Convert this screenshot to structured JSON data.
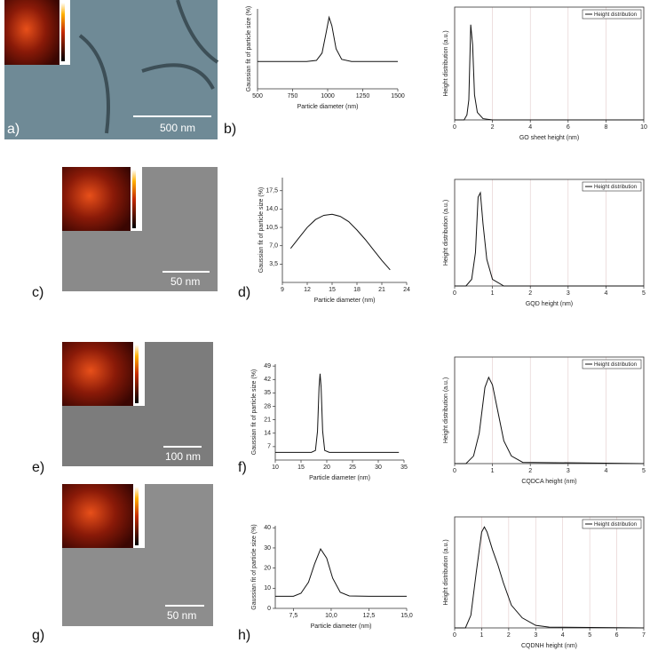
{
  "panel_labels": [
    "a)",
    "b)",
    "c)",
    "d)",
    "e)",
    "f)",
    "g)",
    "h)"
  ],
  "images": [
    {
      "scale_bar": "500 nm"
    },
    {
      "scale_bar": "50 nm"
    },
    {
      "scale_bar": "100 nm"
    },
    {
      "scale_bar": "50 nm"
    }
  ],
  "chart_data": [
    {
      "type": "line",
      "x_label": "Particle diameter (nm)",
      "y_label": "Gaussian fit of particle size (%)",
      "x": [
        500,
        700,
        850,
        920,
        960,
        990,
        1010,
        1030,
        1060,
        1100,
        1170,
        1300,
        1500
      ],
      "series": [
        {
          "color": "#111111",
          "values": [
            13,
            13,
            13,
            13.5,
            17,
            27,
            34,
            30,
            19,
            14,
            13,
            13,
            13
          ]
        }
      ],
      "xlim": [
        500,
        1500
      ],
      "xticks": [
        500,
        750,
        1000,
        1250,
        1500
      ],
      "ylim": [
        0,
        38
      ],
      "grid": false
    },
    {
      "type": "line",
      "x_label": "GO sheet height (nm)",
      "y_label": "Height distribution (a.u.)",
      "x": [
        0,
        0.5,
        0.65,
        0.75,
        0.85,
        0.95,
        1.05,
        1.2,
        1.5,
        2,
        10
      ],
      "series": [
        {
          "name": "Height distribution",
          "color": "#111111",
          "values": [
            0,
            0,
            2,
            8,
            38,
            30,
            10,
            3,
            0.5,
            0,
            0
          ]
        }
      ],
      "xlim": [
        0,
        10
      ],
      "xticks": [
        0,
        2,
        4,
        6,
        8,
        10
      ],
      "ylim": [
        0,
        45
      ],
      "grid": true,
      "legend": "upper right"
    },
    {
      "type": "line",
      "x_label": "Particle diameter (nm)",
      "y_label": "Gaussian fit of particle size (%)",
      "x": [
        10,
        11,
        12,
        13,
        14,
        15,
        16,
        17,
        18,
        19,
        20,
        21,
        22
      ],
      "series": [
        {
          "color": "#111111",
          "values": [
            6.5,
            8.5,
            10.5,
            12,
            12.8,
            13,
            12.6,
            11.6,
            10,
            8.2,
            6.2,
            4.2,
            2.4
          ]
        }
      ],
      "xlim": [
        9,
        24
      ],
      "xticks": [
        9,
        12,
        15,
        18,
        21,
        24
      ],
      "ylim": [
        0,
        20
      ],
      "yticks": [
        {
          "value": 3.5,
          "label": "3,5"
        },
        {
          "value": 7,
          "label": "7,0"
        },
        {
          "value": 10.5,
          "label": "10,5"
        },
        {
          "value": 14,
          "label": "14,0"
        },
        {
          "value": 17.5,
          "label": "17,5"
        }
      ],
      "grid": false
    },
    {
      "type": "line",
      "x_label": "GQD height (nm)",
      "y_label": "Height distribution (a.u.)",
      "x": [
        0,
        0.3,
        0.45,
        0.55,
        0.62,
        0.68,
        0.75,
        0.85,
        1.0,
        1.3,
        5
      ],
      "series": [
        {
          "name": "Height distribution",
          "color": "#111111",
          "values": [
            0,
            0,
            3,
            15,
            40,
            42,
            28,
            12,
            3,
            0,
            0
          ]
        }
      ],
      "xlim": [
        0,
        5
      ],
      "xticks": [
        0,
        1,
        2,
        3,
        4,
        5
      ],
      "ylim": [
        0,
        48
      ],
      "grid": true,
      "legend": "upper right"
    },
    {
      "type": "line",
      "x_label": "Particle diameter (nm)",
      "y_label": "Gaussian fit of particle size (%)",
      "x": [
        10,
        17,
        17.8,
        18.2,
        18.5,
        18.7,
        18.9,
        19.2,
        19.6,
        20.5,
        34
      ],
      "series": [
        {
          "color": "#111111",
          "values": [
            4,
            4,
            5,
            15,
            38,
            45,
            38,
            15,
            5,
            4,
            4
          ]
        }
      ],
      "xlim": [
        10,
        35
      ],
      "xticks": [
        10,
        15,
        20,
        25,
        30,
        35
      ],
      "ylim": [
        0,
        50
      ],
      "yticks": [
        7,
        14,
        21,
        28,
        35,
        42,
        49
      ],
      "grid": false
    },
    {
      "type": "line",
      "x_label": "CQDCA height (nm)",
      "y_label": "Height distribution (a.u.)",
      "x": [
        0,
        0.3,
        0.5,
        0.65,
        0.8,
        0.9,
        1.0,
        1.15,
        1.3,
        1.5,
        1.8,
        5
      ],
      "series": [
        {
          "name": "Height distribution",
          "color": "#111111",
          "values": [
            0,
            0,
            3,
            12,
            30,
            34,
            31,
            20,
            9,
            3,
            0.5,
            0
          ]
        }
      ],
      "xlim": [
        0,
        5
      ],
      "xticks": [
        0,
        1,
        2,
        3,
        4,
        5
      ],
      "ylim": [
        0,
        42
      ],
      "grid": true,
      "legend": "upper right"
    },
    {
      "type": "line",
      "x_label": "Particle diameter (nm)",
      "y_label": "Gaussian fit of particle size (%)",
      "x": [
        6.3,
        7.5,
        8.0,
        8.5,
        8.9,
        9.3,
        9.7,
        10.1,
        10.6,
        11.2,
        12.5,
        15
      ],
      "series": [
        {
          "color": "#111111",
          "values": [
            6,
            6,
            7.5,
            13,
            22,
            29.5,
            25,
            15,
            8,
            6.2,
            6,
            6
          ]
        }
      ],
      "xlim": [
        6.3,
        15
      ],
      "xticks": [
        {
          "value": 7.5,
          "label": "7,5"
        },
        {
          "value": 10,
          "label": "10,0"
        },
        {
          "value": 12.5,
          "label": "12,5"
        },
        {
          "value": 15,
          "label": "15,0"
        }
      ],
      "ylim": [
        0,
        41
      ],
      "yticks": [
        0,
        10,
        20,
        30,
        40
      ],
      "grid": false
    },
    {
      "type": "line",
      "x_label": "CQDNH height (nm)",
      "y_label": "Height distribution (a.u.)",
      "x": [
        0,
        0.4,
        0.6,
        0.8,
        1.0,
        1.1,
        1.2,
        1.4,
        1.6,
        1.8,
        2.1,
        2.5,
        3,
        3.5,
        7
      ],
      "series": [
        {
          "name": "Height distribution",
          "color": "#111111",
          "values": [
            0,
            0,
            5,
            22,
            38,
            40,
            38,
            31,
            25,
            18,
            9,
            4,
            1,
            0.3,
            0
          ]
        }
      ],
      "xlim": [
        0,
        7
      ],
      "xticks": [
        0,
        1,
        2,
        3,
        4,
        5,
        6,
        7
      ],
      "ylim": [
        0,
        44
      ],
      "grid": true,
      "legend": "upper right"
    }
  ]
}
